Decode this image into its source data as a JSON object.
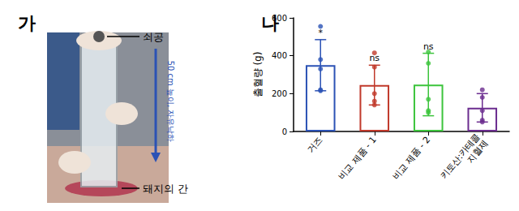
{
  "photo": {
    "panel": "가",
    "ball_label": "쇠공",
    "drop_label": "50 cm 높이, 자유낙하",
    "liver_label": "돼지의 간"
  },
  "chart_data": {
    "panel": "나",
    "type": "bar",
    "ylabel": "출혈량 (g)",
    "categories": [
      "거즈",
      "비교 제품 - 1",
      "비교 제품 - 2",
      "키토산:카테콜\n지혈제"
    ],
    "values": [
      350,
      245,
      248,
      125
    ],
    "errors": [
      135,
      105,
      165,
      75
    ],
    "points": [
      [
        555,
        380,
        330,
        220,
        215
      ],
      [
        415,
        340,
        200,
        160,
        140
      ],
      [
        420,
        360,
        170,
        110,
        100
      ],
      [
        220,
        180,
        110,
        60,
        50
      ]
    ],
    "significance": [
      "*",
      "ns",
      "ns",
      null
    ],
    "colors": [
      "#2b52b5",
      "#c0392b",
      "#3cc43c",
      "#6b2d8f"
    ],
    "ylim": [
      0,
      600
    ],
    "yticks": [
      0,
      200,
      400,
      600
    ],
    "grid": false
  }
}
